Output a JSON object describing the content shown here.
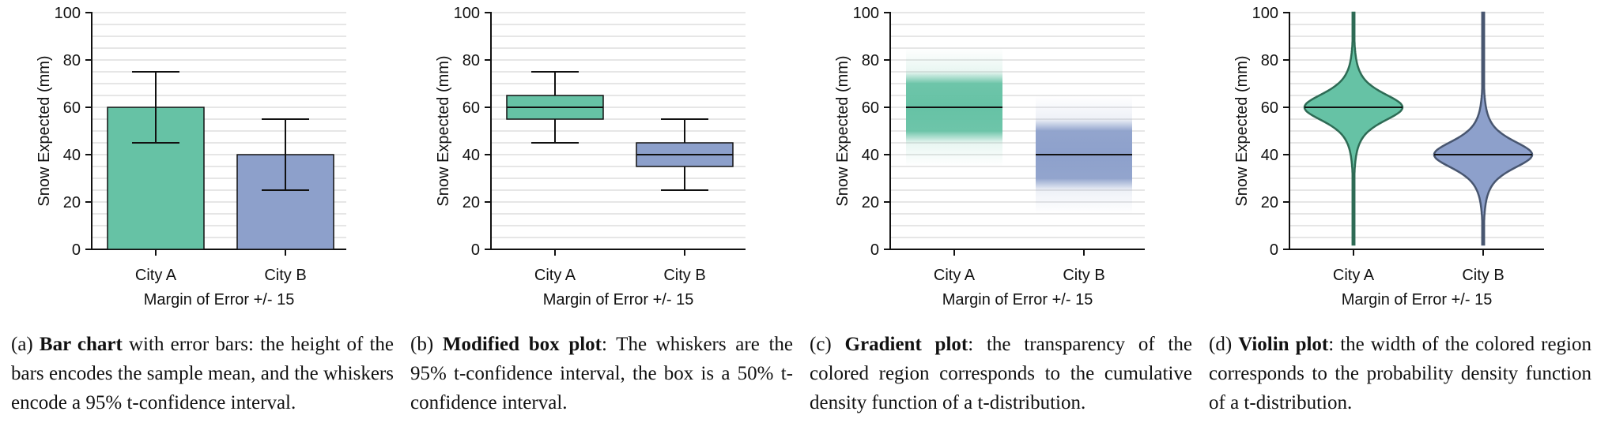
{
  "colors": {
    "city_a": "#66c2a5",
    "city_b": "#8da0cb",
    "city_a_dark": "#2e6b55",
    "city_b_dark": "#485670",
    "grid": "#cccccc",
    "axis": "#111111"
  },
  "chart_data": [
    {
      "type": "bar",
      "categories": [
        "City A",
        "City B"
      ],
      "values": [
        60,
        40
      ],
      "error_low": [
        45,
        25
      ],
      "error_high": [
        75,
        55
      ],
      "ylabel": "Snow Expected (mm)",
      "xlabel": "Margin of Error +/- 15",
      "ylim": [
        0,
        100
      ],
      "yticks": [
        0,
        20,
        40,
        60,
        80,
        100
      ],
      "grid": true,
      "caption": {
        "label": "(a)",
        "bold": "Bar chart",
        "text": "with error bars: the height of the bars encodes the sample mean, and the whiskers encode a 95% t-confidence interval."
      }
    },
    {
      "type": "box",
      "categories": [
        "City A",
        "City B"
      ],
      "median": [
        60,
        40
      ],
      "q1": [
        55,
        35
      ],
      "q3": [
        65,
        45
      ],
      "whisker_low": [
        45,
        25
      ],
      "whisker_high": [
        75,
        55
      ],
      "ylabel": "Snow Expected (mm)",
      "xlabel": "Margin of Error +/- 15",
      "ylim": [
        0,
        100
      ],
      "yticks": [
        0,
        20,
        40,
        60,
        80,
        100
      ],
      "grid": true,
      "caption": {
        "label": "(b)",
        "bold": "Modified box plot",
        "text": ": The whiskers are the 95% t-confidence interval, the box is a 50% t-confidence interval."
      }
    },
    {
      "type": "gradient",
      "categories": [
        "City A",
        "City B"
      ],
      "mean": [
        60,
        40
      ],
      "range_low": [
        35,
        15
      ],
      "range_high": [
        85,
        65
      ],
      "ylabel": "Snow Expected (mm)",
      "xlabel": "Margin of Error +/- 15",
      "ylim": [
        0,
        100
      ],
      "yticks": [
        0,
        20,
        40,
        60,
        80,
        100
      ],
      "grid": true,
      "caption": {
        "label": "(c)",
        "bold": "Gradient plot",
        "text": ": the transparency of the colored region corresponds to the cumulative density function of a t-distribution."
      }
    },
    {
      "type": "violin",
      "categories": [
        "City A",
        "City B"
      ],
      "center": [
        60,
        40
      ],
      "range_low": [
        2,
        2
      ],
      "range_high": [
        100,
        100
      ],
      "ylabel": "Snow Expected (mm)",
      "xlabel": "Margin of Error +/- 15",
      "ylim": [
        0,
        100
      ],
      "yticks": [
        0,
        20,
        40,
        60,
        80,
        100
      ],
      "grid": true,
      "caption": {
        "label": "(d)",
        "bold": "Violin plot",
        "text": ": the width of the colored region corresponds to the probability density function of a t-distribution."
      }
    }
  ]
}
